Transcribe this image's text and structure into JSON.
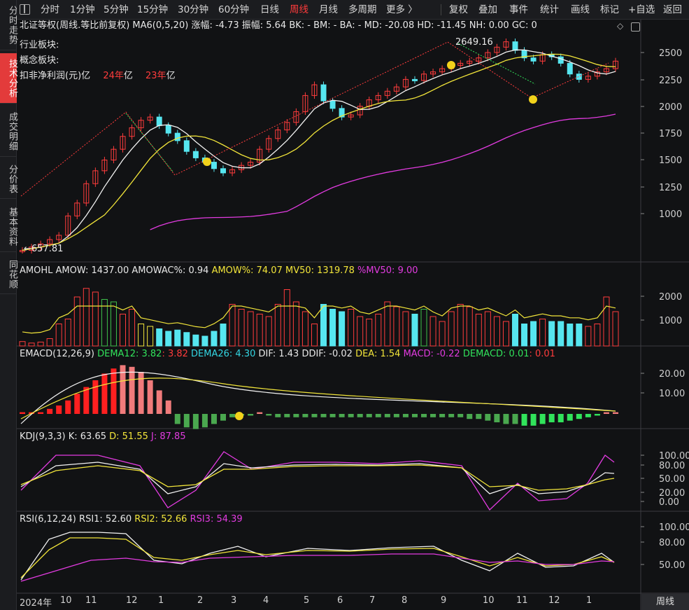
{
  "sidebar": [
    {
      "label": "分时走势",
      "active": false
    },
    {
      "label": "技术分析",
      "active": true
    },
    {
      "label": "成交明细",
      "active": false
    },
    {
      "label": "分价表",
      "active": false
    },
    {
      "label": "基本资料",
      "active": false
    },
    {
      "label": "同花顺",
      "active": false
    }
  ],
  "toolbar": {
    "periods": [
      "分时",
      "1分钟",
      "5分钟",
      "15分钟",
      "30分钟",
      "60分钟",
      "日线",
      "周线",
      "月线",
      "多周期",
      "更多 〉"
    ],
    "active_period": "周线",
    "tools": [
      "复权",
      "叠加",
      "事件",
      "统计",
      "画线",
      "标记",
      "+自选",
      "返回"
    ]
  },
  "main_info": {
    "name": "北证等权(周线.等比前复权)",
    "ma": "MA6(0,5,20)",
    "change": "涨幅: -4.73",
    "amplitude": "振幅: 5.64",
    "bk": "BK: -",
    "bm": "BM: -",
    "ba": "BA: -",
    "md": "MD: -20.08",
    "hd": "HD: -11.45",
    "nh": "NH: 0.00",
    "gc": "GC: 0"
  },
  "left_labels": {
    "industry": "行业板块:",
    "concept": "概念板块:",
    "profit_label": "扣非净利润(元)",
    "profit_unit1": "亿",
    "y24": "24年",
    "unit2": "亿",
    "y23": "23年",
    "unit3": "亿"
  },
  "price_annotations": {
    "high": "2649.16",
    "low": "←657.81"
  },
  "price_axis": [
    "2500",
    "2250",
    "2000",
    "1750",
    "1500",
    "1250",
    "1000"
  ],
  "amohl": {
    "name": "AMOHL",
    "amow": "AMOW: 1437.00",
    "amowac": "AMOWAC%: 0.94",
    "amow_pct": "AMOW%: 74.07",
    "mv50": "MV50: 1319.78",
    "pmv50": "%MV50: 9.00",
    "axis": [
      "2000",
      "1000"
    ]
  },
  "emacd": {
    "name": "EMACD(12,26,9)",
    "dema12": "DEMA12: 3.82",
    "dema12b": ": 3.82",
    "dema26": "DEMA26: 4.30",
    "dif": "DIF: 1.43",
    "ddif": "DDIF: -0.02",
    "dea": "DEA: 1.54",
    "macd": "MACD: -0.22",
    "demacd": "DEMACD: 0.01",
    "demacd2": ": 0.01",
    "axis": [
      "20.00",
      "10.00"
    ]
  },
  "kdj": {
    "name": "KDJ(9,3,3)",
    "k": "K: 63.65",
    "d": "D: 51.55",
    "j": "J: 87.85",
    "axis": [
      "100.00",
      "80.00",
      "50.00",
      "20.00",
      "0.00"
    ]
  },
  "rsi": {
    "name": "RSI(6,12,24)",
    "rsi1": "RSI1: 52.60",
    "rsi2": "RSI2: 52.66",
    "rsi3": "RSI3: 54.39",
    "axis": [
      "100.00",
      "80.00",
      "50.00"
    ]
  },
  "dates": [
    "2024年",
    "10",
    "11",
    "12",
    "1",
    "2",
    "3",
    "4",
    "5",
    "6",
    "7",
    "8",
    "9",
    "10",
    "11",
    "12",
    "1"
  ],
  "period_button": "周线",
  "colors": {
    "up": "#ff3c3c",
    "down": "#56e6f0",
    "ma_white": "#f2f2f2",
    "ma_yellow": "#f2e53a",
    "ma_magenta": "#e23be0",
    "active": "#e33b3b"
  }
}
